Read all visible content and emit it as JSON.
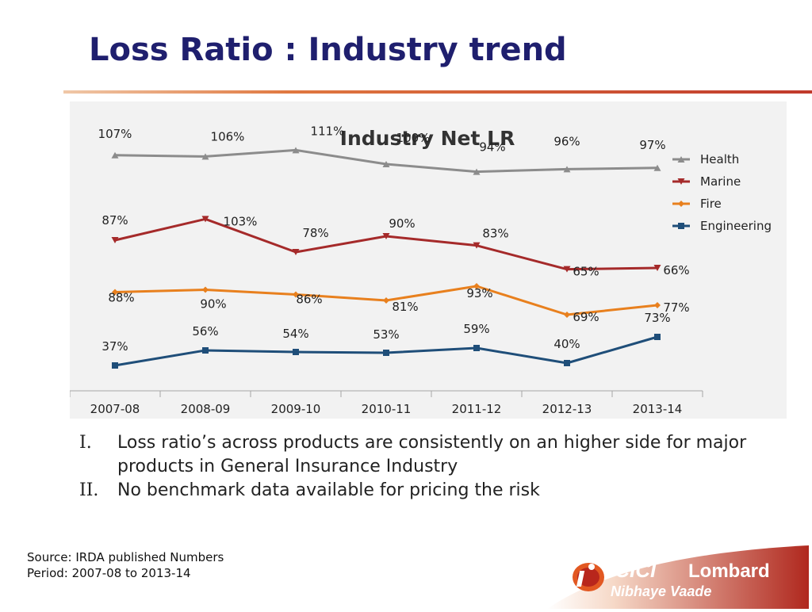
{
  "slide": {
    "title": "Loss Ratio : Industry trend"
  },
  "bullets": [
    {
      "marker": "I.",
      "text": "Loss ratio’s across products are consistently on an higher side for major products in General Insurance Industry"
    },
    {
      "marker": "II.",
      "text": "No benchmark data available for pricing the risk"
    }
  ],
  "footer": {
    "source": "Source: IRDA published Numbers",
    "period": "Period: 2007-08 to 2013-14"
  },
  "logo": {
    "brand1": "ICICI",
    "brand2": "Lombard",
    "tagline": "Nibhaye Vaade",
    "accent_color": "#c0392b",
    "mark_icon": "i-swoosh-logo"
  },
  "chart_data": {
    "type": "line",
    "title": "Industry Net LR",
    "categories": [
      "2007-08",
      "2008-09",
      "2009-10",
      "2010-11",
      "2011-12",
      "2012-13",
      "2013-14"
    ],
    "legend_position": "right",
    "grid": false,
    "series": [
      {
        "name": "Health",
        "color": "#8c8c8c",
        "marker": "triangle-up",
        "labels": [
          "107%",
          "106%",
          "111%",
          "100%",
          "94%",
          "96%",
          "97%"
        ],
        "values": [
          107,
          106,
          111,
          100,
          94,
          96,
          97
        ]
      },
      {
        "name": "Marine",
        "color": "#a52a2a",
        "marker": "triangle-down",
        "labels": [
          "87%",
          "103%",
          "78%",
          "90%",
          "83%",
          "65%",
          "66%"
        ],
        "values": [
          87,
          103,
          78,
          90,
          83,
          65,
          66
        ]
      },
      {
        "name": "Fire",
        "color": "#e8801e",
        "marker": "diamond",
        "labels": [
          "88%",
          "90%",
          "86%",
          "81%",
          "93%",
          "69%",
          "77%"
        ],
        "values": [
          88,
          90,
          86,
          81,
          93,
          69,
          77
        ]
      },
      {
        "name": "Engineering",
        "color": "#1f4e79",
        "marker": "square",
        "labels": [
          "37%",
          "56%",
          "54%",
          "53%",
          "59%",
          "40%",
          "73%"
        ],
        "values": [
          37,
          56,
          54,
          53,
          59,
          40,
          73
        ]
      }
    ]
  }
}
